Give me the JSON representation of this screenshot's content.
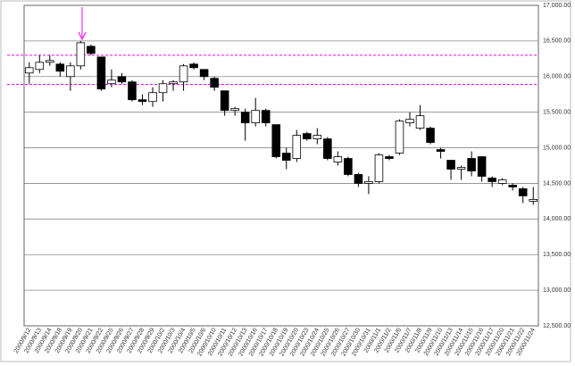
{
  "chart_data": {
    "type": "candlestick",
    "categories": [
      "2000/9/12",
      "2000/9/13",
      "2000/9/14",
      "2000/9/18",
      "2000/9/19",
      "2000/9/20",
      "2000/9/21",
      "2000/9/22",
      "2000/9/25",
      "2000/9/26",
      "2000/9/27",
      "2000/9/28",
      "2000/9/29",
      "2000/10/2",
      "2000/10/3",
      "2000/10/4",
      "2000/10/5",
      "2000/10/6",
      "2000/10/10",
      "2000/10/11",
      "2000/10/12",
      "2000/10/13",
      "2000/10/16",
      "2000/10/17",
      "2000/10/18",
      "2000/10/19",
      "2000/10/20",
      "2000/10/23",
      "2000/10/24",
      "2000/10/25",
      "2000/10/26",
      "2000/10/27",
      "2000/10/30",
      "2000/10/31",
      "2000/11/1",
      "2000/11/2",
      "2000/11/6",
      "2000/11/7",
      "2000/11/8",
      "2000/11/9",
      "2000/11/10",
      "2000/11/13",
      "2000/11/14",
      "2000/11/15",
      "2000/11/16",
      "2000/11/17",
      "2000/11/20",
      "2000/11/21",
      "2000/11/22",
      "2000/11/24"
    ],
    "open": [
      16050,
      16100,
      16200,
      16175,
      16000,
      16150,
      16425,
      16275,
      15900,
      16000,
      15925,
      15675,
      15650,
      15775,
      15900,
      15925,
      16175,
      16100,
      15975,
      15800,
      15525,
      15500,
      15350,
      15525,
      15325,
      14925,
      14850,
      15200,
      15125,
      15125,
      14800,
      14850,
      14625,
      14500,
      14525,
      14875,
      14925,
      15350,
      15275,
      15275,
      14975,
      14825,
      14700,
      14850,
      14875,
      14575,
      14500,
      14475,
      14425,
      14250
    ],
    "high": [
      16200,
      16300,
      16300,
      16200,
      16200,
      16500,
      16450,
      16275,
      16100,
      16050,
      15950,
      15750,
      15850,
      15950,
      15950,
      16175,
      16200,
      16100,
      16000,
      15800,
      15575,
      15550,
      15700,
      15550,
      15325,
      15000,
      15250,
      15225,
      15275,
      15150,
      14950,
      14875,
      14650,
      14600,
      14925,
      14900,
      15400,
      15500,
      15600,
      15300,
      15000,
      14825,
      14750,
      14950,
      14875,
      14600,
      14575,
      14500,
      14450,
      14450
    ],
    "low": [
      15900,
      16050,
      16150,
      16000,
      15800,
      16100,
      16300,
      15800,
      15850,
      15900,
      15650,
      15600,
      15575,
      15650,
      15800,
      15800,
      16100,
      15950,
      15800,
      15450,
      15450,
      15100,
      15300,
      15300,
      14850,
      14700,
      14800,
      15100,
      15050,
      14825,
      14750,
      14600,
      14450,
      14350,
      14500,
      14825,
      14900,
      15300,
      15250,
      15050,
      14850,
      14550,
      14550,
      14600,
      14525,
      14450,
      14475,
      14400,
      14225,
      14200
    ],
    "close": [
      16125,
      16200,
      16225,
      16075,
      16150,
      16475,
      16325,
      15825,
      15950,
      15925,
      15675,
      15650,
      15775,
      15900,
      15925,
      16150,
      16125,
      16000,
      15850,
      15525,
      15550,
      15350,
      15525,
      15350,
      14875,
      14825,
      15175,
      15125,
      15175,
      14850,
      14875,
      14625,
      14500,
      14525,
      14900,
      14850,
      15375,
      15400,
      15450,
      15075,
      14950,
      14700,
      14725,
      14675,
      14600,
      14525,
      14550,
      14450,
      14325,
      14275
    ],
    "up_color": "#ffffff",
    "down_color": "#000000",
    "reference_lines": [
      16300,
      15890
    ],
    "reference_color": "#ff00ff",
    "ylim": [
      12500,
      17000
    ],
    "yticks": [
      {
        "value": 12500,
        "label": "12,500.00"
      },
      {
        "value": 13000,
        "label": "13,000.00"
      },
      {
        "value": 13500,
        "label": "13,500.00"
      },
      {
        "value": 14000,
        "label": "14,000.00"
      },
      {
        "value": 14500,
        "label": "14,500.00"
      },
      {
        "value": 15000,
        "label": "15,000.00"
      },
      {
        "value": 15500,
        "label": "15,500.00"
      },
      {
        "value": 16000,
        "label": "16,000.00"
      },
      {
        "value": 16500,
        "label": "16,500.00"
      },
      {
        "value": 17000,
        "label": "17,000.00"
      }
    ],
    "grid": true
  }
}
